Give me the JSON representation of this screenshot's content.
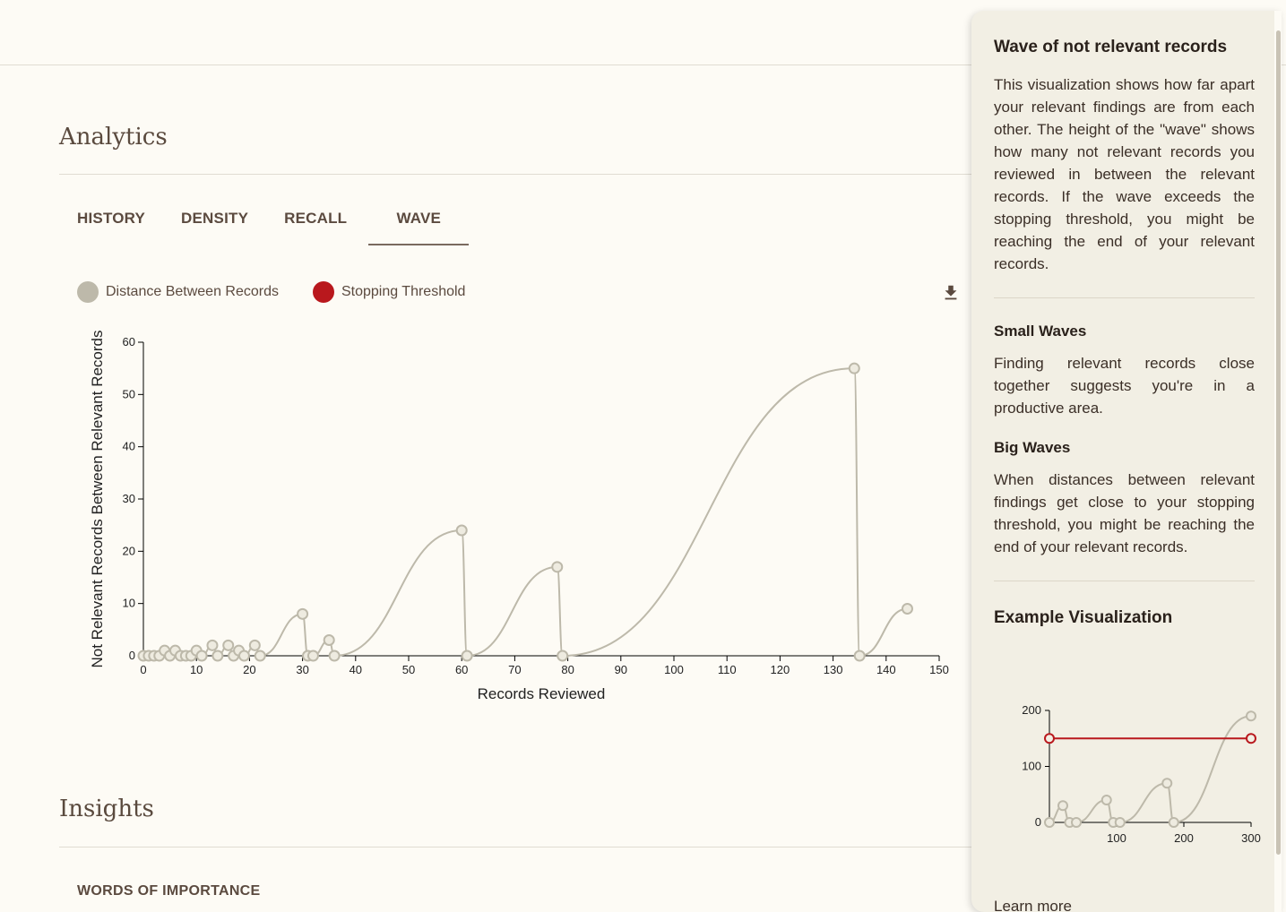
{
  "analytics": {
    "title": "Analytics"
  },
  "tabs": [
    "HISTORY",
    "DENSITY",
    "RECALL",
    "WAVE"
  ],
  "active_tab": "WAVE",
  "legend": [
    {
      "label": "Distance Between Records",
      "color": "#bdb9aa"
    },
    {
      "label": "Stopping Threshold",
      "color": "#b9181d"
    }
  ],
  "chart_data": {
    "type": "line",
    "xlabel": "Records Reviewed",
    "ylabel": "Not Relevant Records Between Relevant Records",
    "xlim": [
      0,
      150
    ],
    "ylim": [
      0,
      60
    ],
    "xticks": [
      0,
      10,
      20,
      30,
      40,
      50,
      60,
      70,
      80,
      90,
      100,
      110,
      120,
      130,
      140,
      150
    ],
    "yticks": [
      0,
      10,
      20,
      30,
      40,
      50,
      60
    ],
    "series": [
      {
        "name": "Distance Between Records",
        "color": "#bdb9aa",
        "points": [
          [
            0,
            0
          ],
          [
            1,
            0
          ],
          [
            2,
            0
          ],
          [
            3,
            0
          ],
          [
            4,
            1
          ],
          [
            5,
            0
          ],
          [
            6,
            1
          ],
          [
            7,
            0
          ],
          [
            8,
            0
          ],
          [
            9,
            0
          ],
          [
            10,
            1
          ],
          [
            11,
            0
          ],
          [
            13,
            2
          ],
          [
            14,
            0
          ],
          [
            16,
            2
          ],
          [
            17,
            0
          ],
          [
            18,
            1
          ],
          [
            19,
            0
          ],
          [
            21,
            2
          ],
          [
            22,
            0
          ],
          [
            30,
            8
          ],
          [
            31,
            0
          ],
          [
            32,
            0
          ],
          [
            35,
            3
          ],
          [
            36,
            0
          ],
          [
            60,
            24
          ],
          [
            61,
            0
          ],
          [
            78,
            17
          ],
          [
            79,
            0
          ],
          [
            134,
            55
          ],
          [
            135,
            0
          ],
          [
            144,
            9
          ]
        ]
      }
    ]
  },
  "insights": {
    "title": "Insights",
    "words_label": "WORDS OF IMPORTANCE"
  },
  "panel": {
    "title": "Wave of not relevant records",
    "intro": "This visualization shows how far apart your relevant findings are from each other. The height of the \"wave\" shows how many not relevant records you reviewed in between the relevant records. If the wave exceeds the stopping threshold, you might be reaching the end of your relevant records.",
    "small_title": "Small Waves",
    "small_text": "Finding relevant records close together suggests you're in a productive area.",
    "big_title": "Big Waves",
    "big_text": "When distances between relevant findings get close to your stopping threshold, you might be reaching the end of your relevant records.",
    "example_title": "Example Visualization",
    "learn_more": "Learn more",
    "example_chart": {
      "type": "line",
      "xticks": [
        100,
        200,
        300
      ],
      "yticks": [
        0,
        100,
        200
      ],
      "xlim": [
        0,
        300
      ],
      "ylim": [
        0,
        200
      ],
      "threshold": 150,
      "threshold_color": "#b9181d",
      "points": [
        [
          0,
          0
        ],
        [
          20,
          30
        ],
        [
          30,
          0
        ],
        [
          40,
          0
        ],
        [
          85,
          40
        ],
        [
          95,
          0
        ],
        [
          105,
          0
        ],
        [
          175,
          70
        ],
        [
          185,
          0
        ],
        [
          300,
          190
        ]
      ]
    }
  }
}
